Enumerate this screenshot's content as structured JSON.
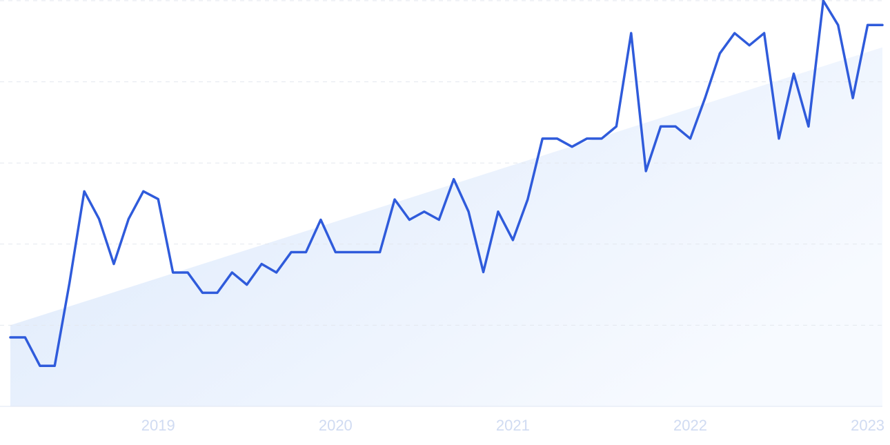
{
  "chart_data": {
    "type": "line",
    "categories": [
      null,
      null,
      null,
      null,
      null,
      null,
      null,
      null,
      null,
      null,
      "2019",
      null,
      null,
      null,
      null,
      null,
      null,
      null,
      null,
      null,
      null,
      null,
      "2020",
      null,
      null,
      null,
      null,
      null,
      null,
      null,
      null,
      null,
      null,
      null,
      "2021",
      null,
      null,
      null,
      null,
      null,
      null,
      null,
      null,
      null,
      null,
      null,
      "2022",
      null,
      null,
      null,
      null,
      null,
      null,
      null,
      null,
      null,
      null,
      null,
      "2023",
      null
    ],
    "series": [
      {
        "color": "#2f5bdb",
        "values": [
          17,
          17,
          10,
          10,
          30.4,
          53,
          46.2,
          35.1,
          46.2,
          53,
          51.1,
          33,
          33,
          28,
          28,
          33,
          30,
          35.1,
          33,
          38,
          38,
          46,
          38,
          38,
          38,
          38,
          51,
          46,
          48,
          46,
          56,
          48,
          33.1,
          48,
          41,
          51,
          66,
          66,
          64,
          66,
          66,
          69,
          92,
          58,
          69,
          69,
          66,
          76,
          87,
          92,
          89,
          92,
          66,
          82,
          69,
          100,
          94,
          76,
          94,
          94
        ]
      }
    ],
    "trend_values": [
      20,
      88.5
    ],
    "trend_color": "#dbe8fb",
    "ylim": [
      0,
      100
    ],
    "yticks": [
      0,
      20,
      40,
      60,
      80,
      100
    ],
    "grid": true
  }
}
